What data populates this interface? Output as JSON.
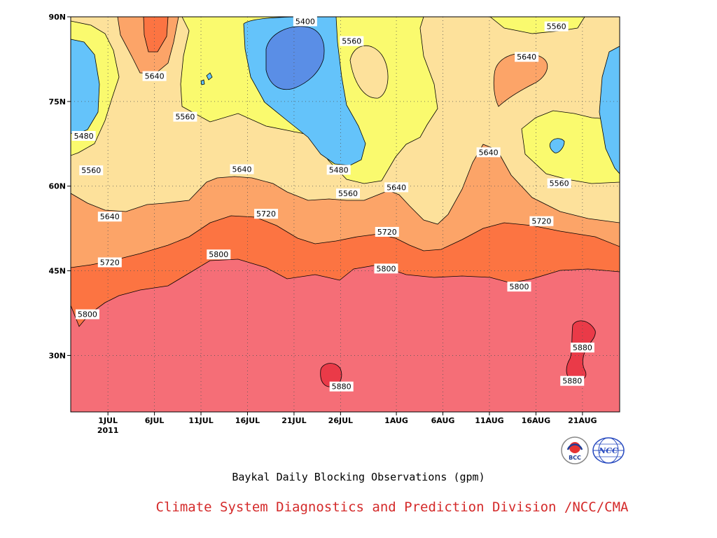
{
  "chart_data": {
    "type": "contour",
    "title": "Baykal Daily Blocking Observations (gpm)",
    "xlabel": "",
    "ylabel": "",
    "x_ticks": [
      {
        "label": "1JUL",
        "day": 5,
        "sublabel": "2011"
      },
      {
        "label": "6JUL",
        "day": 10
      },
      {
        "label": "11JUL",
        "day": 15
      },
      {
        "label": "16JUL",
        "day": 20
      },
      {
        "label": "21JUL",
        "day": 25
      },
      {
        "label": "26JUL",
        "day": 30
      },
      {
        "label": "1AUG",
        "day": 36
      },
      {
        "label": "6AUG",
        "day": 41
      },
      {
        "label": "11AUG",
        "day": 46
      },
      {
        "label": "16AUG",
        "day": 51
      },
      {
        "label": "21AUG",
        "day": 56
      }
    ],
    "xlim": [
      1,
      60
    ],
    "y_ticks": [
      {
        "label": "30N",
        "value": 30
      },
      {
        "label": "45N",
        "value": 45
      },
      {
        "label": "60N",
        "value": 60
      },
      {
        "label": "75N",
        "value": 75
      },
      {
        "label": "90N",
        "value": 90
      }
    ],
    "ylim": [
      20,
      90
    ],
    "contour_levels": [
      5400,
      5480,
      5560,
      5640,
      5720,
      5800,
      5880
    ],
    "band_colors": {
      "lt5400": "#5a8ee6",
      "5400_5480": "#64c3fa",
      "5480_5560": "#fafa6e",
      "5560_5640": "#fde19b",
      "5640_5720": "#fca468",
      "5720_5800": "#fc7442",
      "5800_5880": "#f56e77",
      "gt5880": "#ea3a48"
    },
    "contour_labels": [
      {
        "text": "5400",
        "day": 26.2,
        "lat": 89.2
      },
      {
        "text": "5560",
        "day": 31.2,
        "lat": 85.7
      },
      {
        "text": "5560",
        "day": 53.2,
        "lat": 88.3
      },
      {
        "text": "5640",
        "day": 10.0,
        "lat": 79.5
      },
      {
        "text": "5640",
        "day": 50.0,
        "lat": 82.9
      },
      {
        "text": "5560",
        "day": 13.3,
        "lat": 72.3
      },
      {
        "text": "5480",
        "day": 2.4,
        "lat": 68.9
      },
      {
        "text": "5640",
        "day": 45.9,
        "lat": 66.0
      },
      {
        "text": "5560",
        "day": 3.2,
        "lat": 62.8
      },
      {
        "text": "5640",
        "day": 19.4,
        "lat": 63.0
      },
      {
        "text": "5480",
        "day": 29.8,
        "lat": 62.9
      },
      {
        "text": "5560",
        "day": 30.8,
        "lat": 58.7
      },
      {
        "text": "5640",
        "day": 36.0,
        "lat": 59.8
      },
      {
        "text": "5560",
        "day": 53.5,
        "lat": 60.5
      },
      {
        "text": "5640",
        "day": 5.2,
        "lat": 54.6
      },
      {
        "text": "5720",
        "day": 22.0,
        "lat": 55.1
      },
      {
        "text": "5720",
        "day": 35.0,
        "lat": 51.9
      },
      {
        "text": "5720",
        "day": 51.6,
        "lat": 53.8
      },
      {
        "text": "5720",
        "day": 5.2,
        "lat": 46.5
      },
      {
        "text": "5800",
        "day": 16.9,
        "lat": 47.9
      },
      {
        "text": "5800",
        "day": 34.9,
        "lat": 45.4
      },
      {
        "text": "5800",
        "day": 49.2,
        "lat": 42.2
      },
      {
        "text": "5800",
        "day": 2.8,
        "lat": 37.3
      },
      {
        "text": "5880",
        "day": 56.0,
        "lat": 31.4
      },
      {
        "text": "5880",
        "day": 54.9,
        "lat": 25.5
      },
      {
        "text": "5880",
        "day": 30.1,
        "lat": 24.5
      }
    ],
    "grid": true,
    "legend": "none"
  },
  "footer": {
    "credit": "Climate System Diagnostics and Prediction Division /NCC/CMA",
    "logo_left_text": "BCC",
    "logo_right_text": "NCC"
  }
}
